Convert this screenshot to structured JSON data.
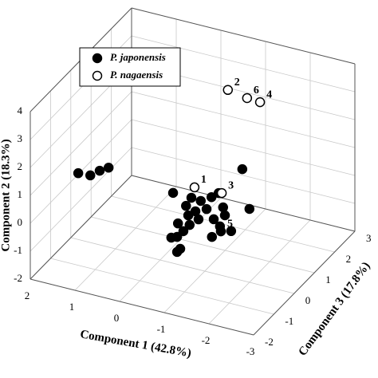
{
  "chart_data": {
    "type": "scatter3d",
    "xlabel": "Component 1 (42.8%)",
    "ylabel": "Component 2 (18.3%)",
    "zlabel": "Component 3 (17.8%)",
    "xlim": [
      -3,
      2
    ],
    "ylim": [
      -2,
      4
    ],
    "zlim": [
      -2,
      3
    ],
    "xticks": [
      2,
      1,
      0,
      -1,
      -2,
      -3
    ],
    "yticks": [
      -2,
      -1,
      0,
      1,
      2,
      3,
      4
    ],
    "zticks": [
      -2,
      -1,
      0,
      1,
      2,
      3
    ],
    "grid": true,
    "legend": "upper left",
    "series": [
      {
        "name": "P. japonensis",
        "color": "#000000",
        "fill": "#000000",
        "x": [
          1.38,
          1.11,
          0.9,
          0.7,
          -0.29,
          -0.58,
          -0.7,
          -0.91,
          -1.15,
          -1.31,
          -0.79,
          -1.04,
          -1.41,
          -0.63,
          -0.86,
          -1.2,
          -1.45,
          -0.4,
          -0.66,
          -0.52,
          -0.38,
          -0.25,
          -1.34,
          -1.59,
          -1.16,
          -1.36,
          -0.45,
          -0.38,
          -1.84,
          -2.0
        ],
        "y": [
          1.3,
          1.33,
          1.58,
          1.77,
          0.52,
          0.17,
          0.51,
          0.48,
          0.71,
          0.92,
          0.06,
          0.24,
          0.45,
          -0.15,
          -0.2,
          -0.06,
          0.18,
          -0.53,
          -0.48,
          -0.76,
          -1.02,
          -1.1,
          -0.26,
          -0.33,
          -0.71,
          -0.43,
          -1.42,
          -1.56,
          1.99,
          0.63
        ],
        "z": [
          -1,
          -1,
          -1,
          -1,
          0,
          0,
          0,
          0,
          0,
          0,
          0,
          0,
          0,
          0,
          0,
          0,
          0,
          0,
          0,
          0,
          0,
          0,
          0,
          0,
          0,
          0,
          0,
          0,
          0,
          0
        ],
        "point_labels": [
          null,
          null,
          null,
          null,
          null,
          null,
          null,
          null,
          null,
          null,
          null,
          null,
          null,
          null,
          null,
          null,
          null,
          null,
          null,
          null,
          null,
          null,
          null,
          null,
          null,
          "5",
          null,
          null,
          null,
          null
        ]
      },
      {
        "name": "P. nagaensis",
        "color": "#000000",
        "fill": "#ffffff",
        "x": [
          -0.77,
          -1.38,
          -0.61,
          -1.04,
          -1.33
        ],
        "y": [
          0.91,
          0.95,
          2.85,
          2.73,
          2.7
        ],
        "z": [
          0,
          0,
          2,
          2,
          2
        ],
        "point_labels": [
          "1",
          "3",
          "2",
          "6",
          "4"
        ]
      }
    ]
  }
}
